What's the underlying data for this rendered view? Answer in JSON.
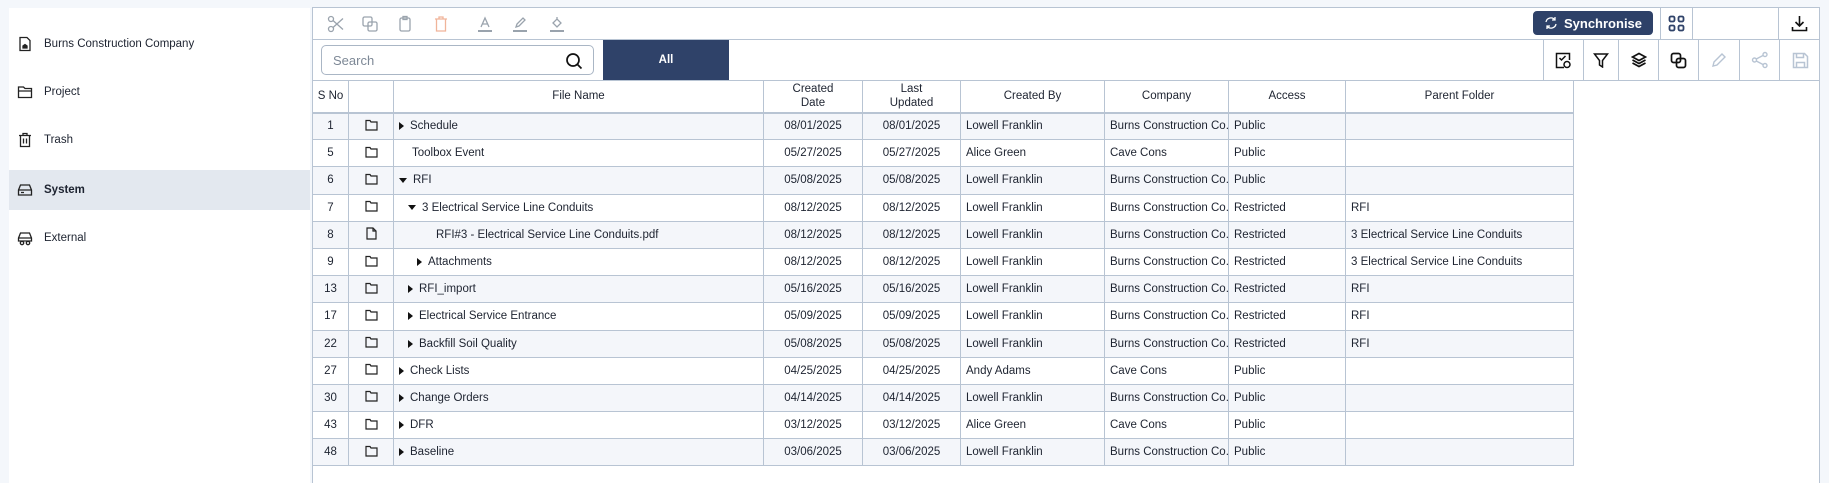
{
  "sidebar": {
    "items": [
      {
        "label": "Burns Construction Company",
        "icon": "building-doc-icon"
      },
      {
        "label": "Project",
        "icon": "folder-open-icon"
      },
      {
        "label": "Trash",
        "icon": "trash-icon"
      },
      {
        "label": "System",
        "icon": "drive-icon",
        "selected": true
      },
      {
        "label": "External",
        "icon": "external-drive-icon"
      }
    ]
  },
  "toolbar": {
    "search_placeholder": "Search",
    "tab_all": "All",
    "sync_label": "Synchronise",
    "accent": "#2f4269"
  },
  "table": {
    "headers": [
      "S No",
      "",
      "File Name",
      "Created Date",
      "Last Updated",
      "Created By",
      "Company",
      "Access",
      "Parent Folder"
    ],
    "rows": [
      {
        "sno": "1",
        "type": "folder",
        "name": "Schedule",
        "level": 0,
        "toggle": "collapsed",
        "created": "08/01/2025",
        "updated": "08/01/2025",
        "by": "Lowell Franklin",
        "company": "Burns Construction Co...",
        "access": "Public",
        "parent": ""
      },
      {
        "sno": "5",
        "type": "folder",
        "name": "Toolbox Event",
        "level": 0,
        "toggle": "none",
        "created": "05/27/2025",
        "updated": "05/27/2025",
        "by": "Alice Green",
        "company": "Cave Cons",
        "access": "Public",
        "parent": ""
      },
      {
        "sno": "6",
        "type": "folder",
        "name": "RFI",
        "level": 0,
        "toggle": "expanded",
        "created": "05/08/2025",
        "updated": "05/08/2025",
        "by": "Lowell Franklin",
        "company": "Burns Construction Co...",
        "access": "Public",
        "parent": ""
      },
      {
        "sno": "7",
        "type": "folder",
        "name": "3 Electrical Service Line Conduits",
        "level": 1,
        "toggle": "expanded",
        "created": "08/12/2025",
        "updated": "08/12/2025",
        "by": "Lowell Franklin",
        "company": "Burns Construction Co...",
        "access": "Restricted",
        "parent": "RFI"
      },
      {
        "sno": "8",
        "type": "file",
        "name": "RFI#3 - Electrical Service Line Conduits.pdf",
        "level": 2,
        "toggle": "none",
        "created": "08/12/2025",
        "updated": "08/12/2025",
        "by": "Lowell Franklin",
        "company": "Burns Construction Co...",
        "access": "Restricted",
        "parent": "3 Electrical Service Line Conduits"
      },
      {
        "sno": "9",
        "type": "folder",
        "name": "Attachments",
        "level": 2,
        "toggle": "collapsed",
        "created": "08/12/2025",
        "updated": "08/12/2025",
        "by": "Lowell Franklin",
        "company": "Burns Construction Co...",
        "access": "Restricted",
        "parent": "3 Electrical Service Line Conduits"
      },
      {
        "sno": "13",
        "type": "folder",
        "name": "RFI_import",
        "level": 1,
        "toggle": "collapsed",
        "created": "05/16/2025",
        "updated": "05/16/2025",
        "by": "Lowell Franklin",
        "company": "Burns Construction Co...",
        "access": "Restricted",
        "parent": "RFI"
      },
      {
        "sno": "17",
        "type": "folder",
        "name": "Electrical Service Entrance",
        "level": 1,
        "toggle": "collapsed",
        "created": "05/09/2025",
        "updated": "05/09/2025",
        "by": "Lowell Franklin",
        "company": "Burns Construction Co...",
        "access": "Restricted",
        "parent": "RFI"
      },
      {
        "sno": "22",
        "type": "folder",
        "name": "Backfill Soil Quality",
        "level": 1,
        "toggle": "collapsed",
        "created": "05/08/2025",
        "updated": "05/08/2025",
        "by": "Lowell Franklin",
        "company": "Burns Construction Co...",
        "access": "Restricted",
        "parent": "RFI"
      },
      {
        "sno": "27",
        "type": "folder",
        "name": "Check Lists",
        "level": 0,
        "toggle": "collapsed",
        "created": "04/25/2025",
        "updated": "04/25/2025",
        "by": "Andy Adams",
        "company": "Cave Cons",
        "access": "Public",
        "parent": ""
      },
      {
        "sno": "30",
        "type": "folder",
        "name": "Change Orders",
        "level": 0,
        "toggle": "collapsed",
        "created": "04/14/2025",
        "updated": "04/14/2025",
        "by": "Lowell Franklin",
        "company": "Burns Construction Co...",
        "access": "Public",
        "parent": ""
      },
      {
        "sno": "43",
        "type": "folder",
        "name": "DFR",
        "level": 0,
        "toggle": "collapsed",
        "created": "03/12/2025",
        "updated": "03/12/2025",
        "by": "Alice Green",
        "company": "Cave Cons",
        "access": "Public",
        "parent": ""
      },
      {
        "sno": "48",
        "type": "folder",
        "name": "Baseline",
        "level": 0,
        "toggle": "collapsed",
        "created": "03/06/2025",
        "updated": "03/06/2025",
        "by": "Lowell Franklin",
        "company": "Burns Construction Co...",
        "access": "Public",
        "parent": ""
      }
    ]
  }
}
